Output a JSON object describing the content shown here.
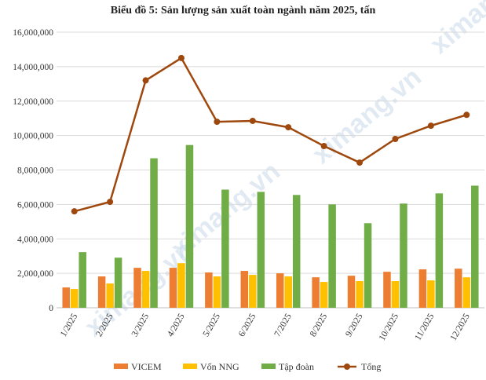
{
  "chart_data": {
    "type": "bar",
    "title": "Biểu đồ 5: Sản lượng sản xuất toàn ngành năm 2025, tấn",
    "categories": [
      "1/2025",
      "2/2025",
      "3/2025",
      "4/2025",
      "5/2025",
      "6/2025",
      "7/2025",
      "8/2025",
      "9/2025",
      "10/2025",
      "11/2025",
      "12/2025"
    ],
    "series": [
      {
        "name": "VICEM",
        "kind": "bar",
        "color": "#ED7D31",
        "values": [
          1180000,
          1820000,
          2320000,
          2320000,
          2050000,
          2140000,
          2000000,
          1770000,
          1860000,
          2090000,
          2230000,
          2270000
        ]
      },
      {
        "name": "Vốn NNG",
        "kind": "bar",
        "color": "#FFC000",
        "values": [
          1090000,
          1410000,
          2140000,
          2590000,
          1820000,
          1910000,
          1820000,
          1500000,
          1550000,
          1550000,
          1590000,
          1770000
        ]
      },
      {
        "name": "Tập đoàn",
        "kind": "bar",
        "color": "#70AD47",
        "values": [
          3230000,
          2910000,
          8680000,
          9450000,
          6860000,
          6730000,
          6550000,
          6000000,
          4910000,
          6050000,
          6640000,
          7090000
        ]
      },
      {
        "name": "Tổng",
        "kind": "line",
        "color": "#9E480E",
        "values": [
          5600000,
          6150000,
          13200000,
          14500000,
          10800000,
          10850000,
          10480000,
          9390000,
          8430000,
          9800000,
          10570000,
          11200000
        ]
      }
    ],
    "ylim": [
      0,
      16000000
    ],
    "yticks": [
      "0",
      "2,000,000",
      "4,000,000",
      "6,000,000",
      "8,000,000",
      "10,000,000",
      "12,000,000",
      "14,000,000",
      "16,000,000"
    ],
    "ytick_values": [
      0,
      2000000,
      4000000,
      6000000,
      8000000,
      10000000,
      12000000,
      14000000,
      16000000
    ],
    "grid": true,
    "legend": "bottom",
    "watermark": "ximang.vn"
  }
}
